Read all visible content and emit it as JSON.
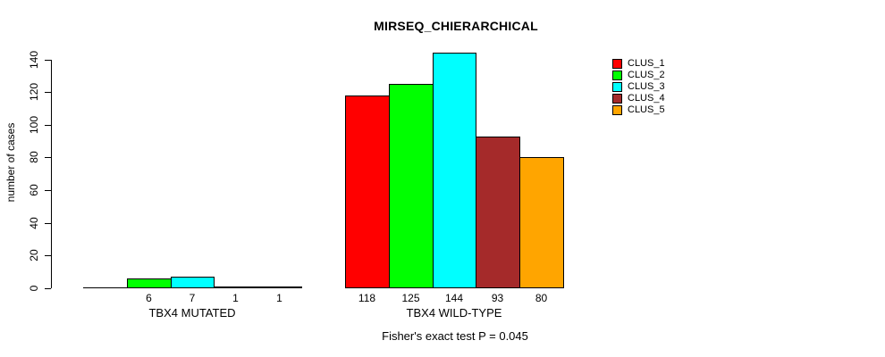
{
  "chart_data": {
    "type": "bar",
    "title": "MIRSEQ_CHIERARCHICAL",
    "subtitle": "Fisher's exact test P = 0.045",
    "ylabel": "number of cases",
    "xlabel": "",
    "ylim": [
      0,
      140
    ],
    "yticks": [
      0,
      20,
      40,
      60,
      80,
      100,
      120,
      140
    ],
    "grid": false,
    "legend_position": "top-right",
    "series": [
      {
        "name": "CLUS_1",
        "color": "#FF0000"
      },
      {
        "name": "CLUS_2",
        "color": "#00FF00"
      },
      {
        "name": "CLUS_3",
        "color": "#00FFFF"
      },
      {
        "name": "CLUS_4",
        "color": "#A52A2A"
      },
      {
        "name": "CLUS_5",
        "color": "#FFA500"
      }
    ],
    "groups": [
      {
        "label": "TBX4 MUTATED",
        "values": [
          0,
          6,
          7,
          1,
          1
        ],
        "value_labels": [
          "",
          "6",
          "7",
          "1",
          "1"
        ]
      },
      {
        "label": "TBX4 WILD-TYPE",
        "values": [
          118,
          125,
          144,
          93,
          80
        ],
        "value_labels": [
          "118",
          "125",
          "144",
          "93",
          "80"
        ]
      }
    ]
  }
}
